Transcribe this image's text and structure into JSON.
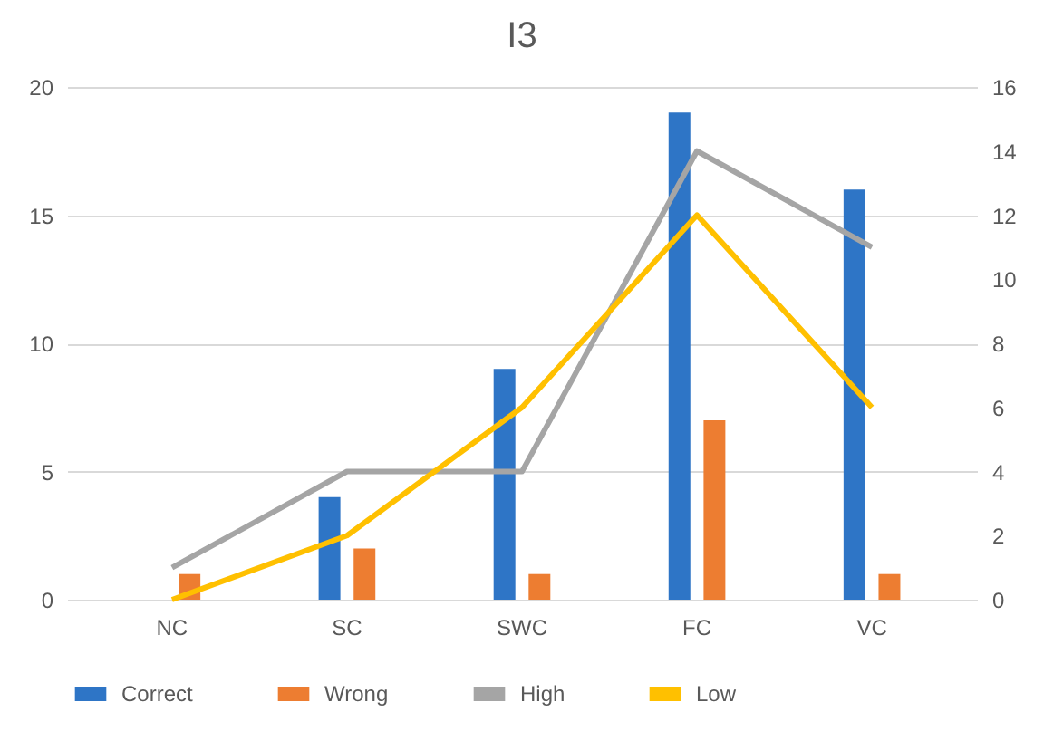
{
  "chart_data": {
    "type": "bar",
    "title": "I3",
    "categories": [
      "NC",
      "SC",
      "SWC",
      "FC",
      "VC"
    ],
    "series": [
      {
        "name": "Correct",
        "color": "#2e75c6",
        "values": [
          0,
          4,
          9,
          19,
          16
        ]
      },
      {
        "name": "Wrong",
        "color": "#ed7d31",
        "values": [
          1,
          2,
          1,
          7,
          1
        ]
      },
      {
        "name": "High",
        "color": "#a5a5a5",
        "values": [
          1,
          4,
          4,
          14,
          11
        ],
        "type": "line",
        "axis": "y2"
      },
      {
        "name": "Low",
        "color": "#ffc000",
        "values": [
          0,
          2,
          6,
          12,
          6
        ],
        "type": "line",
        "axis": "y2"
      }
    ],
    "ylim": [
      0,
      20
    ],
    "yticks": [
      0,
      5,
      10,
      15,
      20
    ],
    "y2lim": [
      0,
      16
    ],
    "y2ticks": [
      0,
      2,
      4,
      6,
      8,
      10,
      12,
      14,
      16
    ],
    "grid": "y",
    "legend": "bottom",
    "marker": "none"
  }
}
